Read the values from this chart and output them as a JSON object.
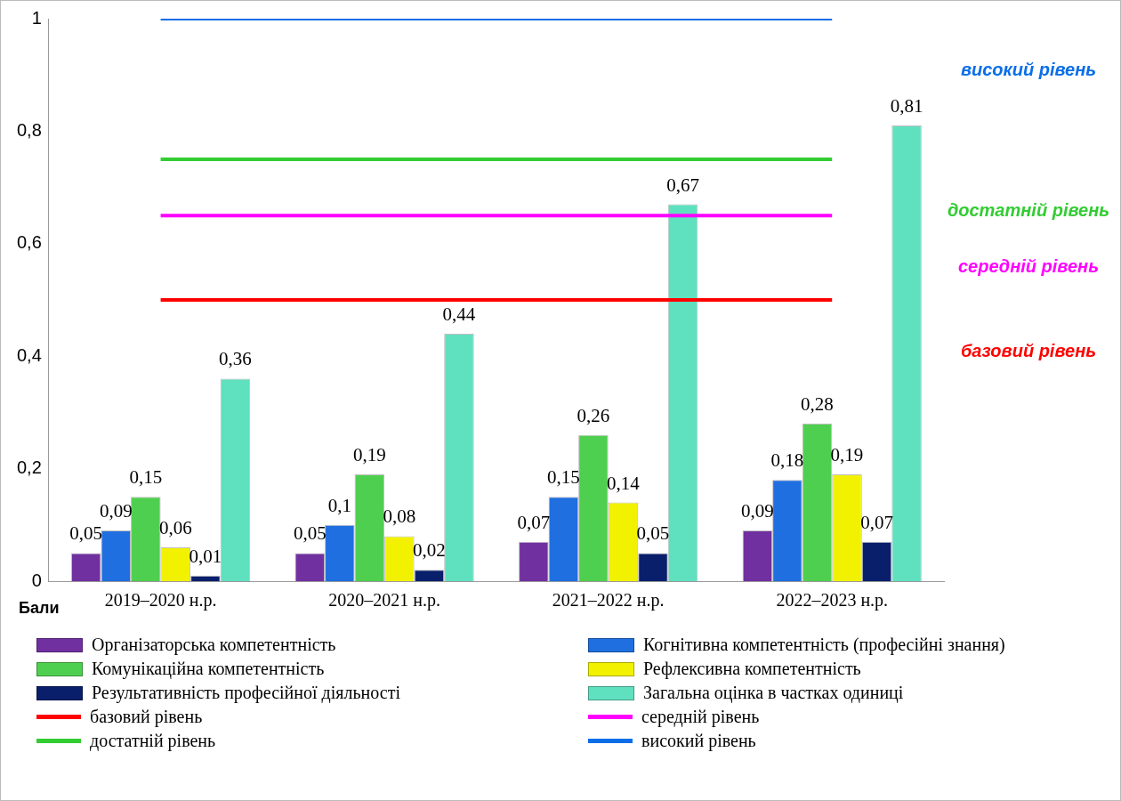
{
  "chart_data": {
    "type": "bar",
    "ylabel": "Бали",
    "categories": [
      "2019–2020 н.р.",
      "2020–2021 н.р.",
      "2021–2022 н.р.",
      "2022–2023 н.р."
    ],
    "series": [
      {
        "name": "Організаторська  компетентність",
        "color": "#7030a0",
        "values": [
          0.05,
          0.05,
          0.07,
          0.09
        ],
        "value_labels": [
          "0,05",
          "0,05",
          "0,07",
          "0,09"
        ]
      },
      {
        "name": "Когнітивна компетентність (професійні знання)",
        "color": "#1f6fe0",
        "values": [
          0.09,
          0.1,
          0.15,
          0.18
        ],
        "value_labels": [
          "0,09",
          "0,1",
          "0,15",
          "0,18"
        ]
      },
      {
        "name": "Комунікаційна компетентність",
        "color": "#4fcf4f",
        "values": [
          0.15,
          0.19,
          0.26,
          0.28
        ],
        "value_labels": [
          "0,15",
          "0,19",
          "0,26",
          "0,28"
        ]
      },
      {
        "name": "Рефлексивна компетентність",
        "color": "#f2f200",
        "values": [
          0.06,
          0.08,
          0.14,
          0.19
        ],
        "value_labels": [
          "0,06",
          "0,08",
          "0,14",
          "0,19"
        ]
      },
      {
        "name": "Результативність професійної діяльності",
        "color": "#0a1f6b",
        "values": [
          0.01,
          0.02,
          0.05,
          0.07
        ],
        "value_labels": [
          "0,01",
          "0,02",
          "0,05",
          "0,07"
        ]
      },
      {
        "name": "Загальна оцінка в частках одиниці",
        "color": "#5fe0bf",
        "values": [
          0.36,
          0.44,
          0.67,
          0.81
        ],
        "value_labels": [
          "0,36",
          "0,44",
          "0,67",
          "0,81"
        ]
      },
      {
        "name": "базовий рівень",
        "type": "line",
        "color": "#ff0000",
        "values": [
          0.5,
          0.5,
          0.5,
          0.5
        ]
      },
      {
        "name": "середній рівень",
        "type": "line",
        "color": "#ff00ff",
        "values": [
          0.65,
          0.65,
          0.65,
          0.65
        ]
      },
      {
        "name": "достатній рівень",
        "type": "line",
        "color": "#33cc33",
        "values": [
          0.75,
          0.75,
          0.75,
          0.75
        ]
      },
      {
        "name": "високий рівень",
        "type": "line",
        "color": "#0a6ee8",
        "values": [
          1,
          1,
          1,
          1
        ]
      }
    ],
    "ylim": [
      0,
      1
    ],
    "yticks": [
      0,
      {
        "value": 0.2,
        "label": "0,2"
      },
      {
        "value": 0.4,
        "label": "0,4"
      },
      {
        "value": 0.6,
        "label": "0,6"
      },
      {
        "value": 0.8,
        "label": "0,8"
      },
      1
    ],
    "grid": false,
    "legend": "bottom",
    "marker": "none"
  }
}
